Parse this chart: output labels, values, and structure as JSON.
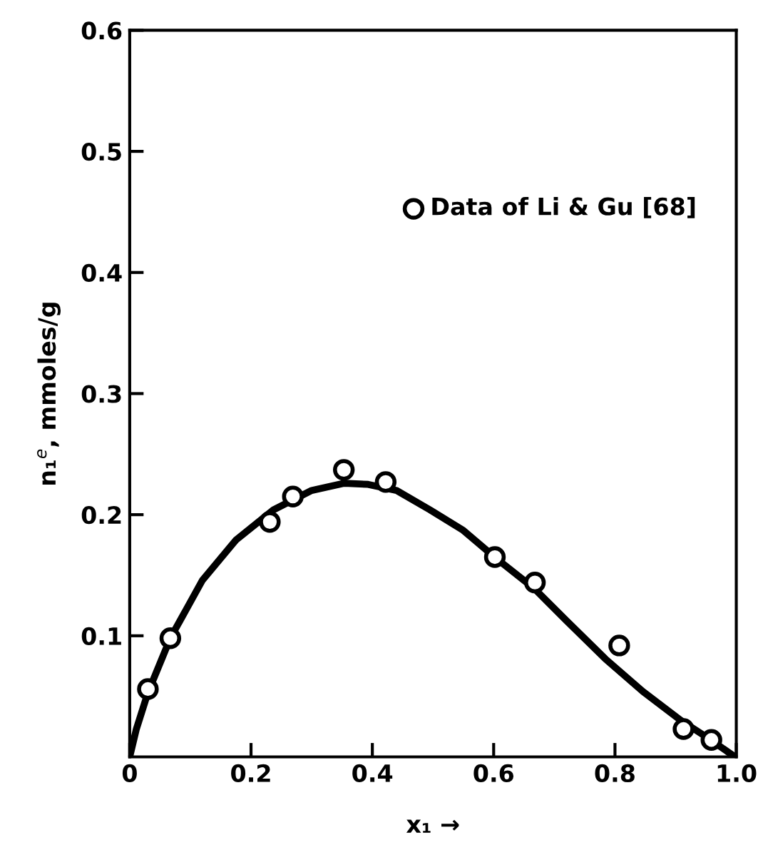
{
  "chart_data": {
    "type": "scatter",
    "xlabel": "x₁ →",
    "ylabel": "n₁$^{e}$, mmoles/g",
    "xlim": [
      0,
      1.0
    ],
    "ylim": [
      0,
      0.6
    ],
    "xticks": [
      0,
      0.2,
      0.4,
      0.6,
      0.8,
      {
        "value": 1.0,
        "label": "1.0"
      }
    ],
    "yticks": [
      0.1,
      0.2,
      0.3,
      0.4,
      0.5,
      0.6
    ],
    "grid": false,
    "legend": "top right",
    "tick_labels": true,
    "series": [
      {
        "name": "Data of Li & Gu [68]",
        "marker": "circle",
        "color": "#000000",
        "x": [
          0.03,
          0.067,
          0.231,
          0.269,
          0.353,
          0.422,
          0.602,
          0.668,
          0.807,
          0.913,
          0.959
        ],
        "values": [
          0.056,
          0.098,
          0.194,
          0.215,
          0.237,
          0.227,
          0.165,
          0.144,
          0.092,
          0.023,
          0.014
        ]
      },
      {
        "type": "line",
        "color": "#000000",
        "line_style": "solid",
        "x": [
          0,
          0.011,
          0.03,
          0.067,
          0.12,
          0.175,
          0.237,
          0.3,
          0.354,
          0.393,
          0.44,
          0.495,
          0.55,
          0.604,
          0.667,
          0.721,
          0.784,
          0.846,
          0.909,
          0.955,
          0.995,
          1.0
        ],
        "values": [
          0,
          0.023,
          0.053,
          0.098,
          0.146,
          0.179,
          0.204,
          0.22,
          0.226,
          0.225,
          0.22,
          0.204,
          0.187,
          0.164,
          0.139,
          0.112,
          0.081,
          0.054,
          0.03,
          0.015,
          0.001,
          0
        ]
      }
    ]
  }
}
